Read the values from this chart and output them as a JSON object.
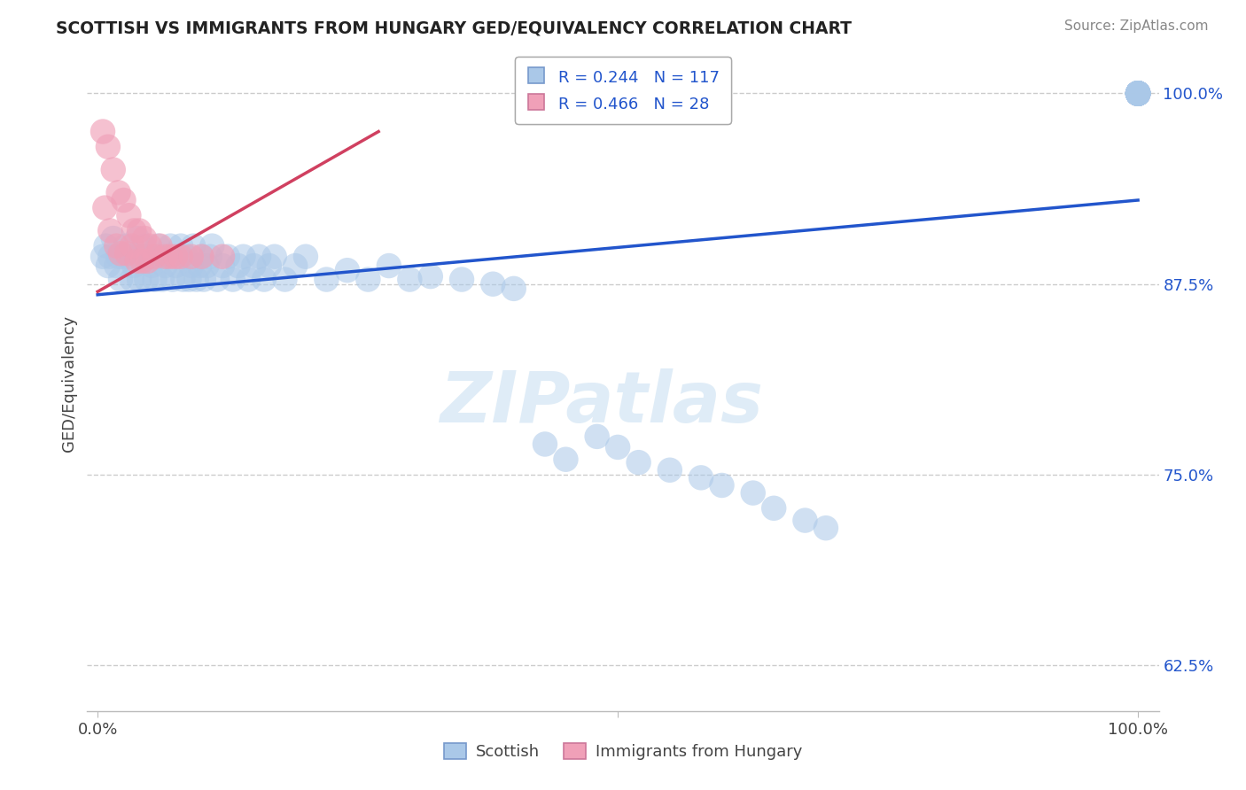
{
  "title": "SCOTTISH VS IMMIGRANTS FROM HUNGARY GED/EQUIVALENCY CORRELATION CHART",
  "source": "Source: ZipAtlas.com",
  "ylabel": "GED/Equivalency",
  "xlim": [
    -0.01,
    1.02
  ],
  "ylim": [
    0.595,
    1.025
  ],
  "yticks": [
    0.625,
    0.75,
    0.875,
    1.0
  ],
  "ytick_labels": [
    "62.5%",
    "75.0%",
    "87.5%",
    "100.0%"
  ],
  "xtick_positions": [
    0.0,
    0.5,
    1.0
  ],
  "xtick_labels": [
    "0.0%",
    "",
    "100.0%"
  ],
  "blue_r": 0.244,
  "blue_n": 117,
  "pink_r": 0.466,
  "pink_n": 28,
  "blue_color": "#aac8e8",
  "blue_line_color": "#2255cc",
  "pink_color": "#f0a0b8",
  "pink_line_color": "#d04060",
  "background_color": "#ffffff",
  "grid_color": "#cccccc",
  "legend_label_blue": "Scottish",
  "legend_label_pink": "Immigrants from Hungary",
  "watermark": "ZIPatlas",
  "blue_trend_x": [
    0.0,
    1.0
  ],
  "blue_trend_y": [
    0.868,
    0.93
  ],
  "pink_trend_x": [
    0.0,
    0.27
  ],
  "pink_trend_y": [
    0.87,
    0.975
  ],
  "blue_scatter_x": [
    0.005,
    0.008,
    0.01,
    0.012,
    0.015,
    0.018,
    0.02,
    0.022,
    0.025,
    0.027,
    0.03,
    0.033,
    0.035,
    0.038,
    0.04,
    0.042,
    0.045,
    0.047,
    0.05,
    0.052,
    0.055,
    0.058,
    0.06,
    0.062,
    0.065,
    0.068,
    0.07,
    0.072,
    0.075,
    0.078,
    0.08,
    0.082,
    0.085,
    0.088,
    0.09,
    0.092,
    0.095,
    0.098,
    0.1,
    0.102,
    0.105,
    0.108,
    0.11,
    0.115,
    0.12,
    0.125,
    0.13,
    0.135,
    0.14,
    0.145,
    0.15,
    0.155,
    0.16,
    0.165,
    0.17,
    0.18,
    0.19,
    0.2,
    0.22,
    0.24,
    0.26,
    0.28,
    0.3,
    0.32,
    0.35,
    0.38,
    0.4,
    0.43,
    0.45,
    0.48,
    0.5,
    0.52,
    0.55,
    0.58,
    0.6,
    0.63,
    0.65,
    0.68,
    0.7,
    1.0,
    1.0,
    1.0,
    1.0,
    1.0,
    1.0,
    1.0,
    1.0,
    1.0,
    1.0,
    1.0,
    1.0,
    1.0,
    1.0,
    1.0,
    1.0,
    1.0,
    1.0,
    1.0,
    1.0,
    1.0,
    1.0,
    1.0,
    1.0,
    1.0,
    1.0,
    1.0,
    1.0,
    1.0,
    1.0,
    1.0,
    1.0,
    1.0,
    1.0,
    1.0,
    1.0,
    1.0,
    1.0
  ],
  "blue_scatter_y": [
    0.893,
    0.9,
    0.887,
    0.893,
    0.905,
    0.887,
    0.893,
    0.878,
    0.893,
    0.9,
    0.893,
    0.878,
    0.887,
    0.905,
    0.878,
    0.893,
    0.9,
    0.878,
    0.893,
    0.887,
    0.878,
    0.9,
    0.893,
    0.878,
    0.887,
    0.893,
    0.9,
    0.878,
    0.887,
    0.893,
    0.9,
    0.878,
    0.893,
    0.878,
    0.887,
    0.9,
    0.878,
    0.887,
    0.893,
    0.878,
    0.887,
    0.893,
    0.9,
    0.878,
    0.887,
    0.893,
    0.878,
    0.887,
    0.893,
    0.878,
    0.887,
    0.893,
    0.878,
    0.887,
    0.893,
    0.878,
    0.887,
    0.893,
    0.878,
    0.884,
    0.878,
    0.887,
    0.878,
    0.88,
    0.878,
    0.875,
    0.872,
    0.77,
    0.76,
    0.775,
    0.768,
    0.758,
    0.753,
    0.748,
    0.743,
    0.738,
    0.728,
    0.72,
    0.715,
    1.0,
    1.0,
    1.0,
    1.0,
    1.0,
    1.0,
    1.0,
    1.0,
    1.0,
    1.0,
    1.0,
    1.0,
    1.0,
    1.0,
    1.0,
    1.0,
    1.0,
    1.0,
    1.0,
    1.0,
    1.0,
    1.0,
    1.0,
    1.0,
    1.0,
    1.0,
    1.0,
    1.0,
    1.0,
    1.0,
    1.0,
    1.0,
    1.0,
    1.0,
    1.0,
    1.0,
    1.0,
    1.0
  ],
  "pink_scatter_x": [
    0.005,
    0.007,
    0.01,
    0.012,
    0.015,
    0.018,
    0.02,
    0.022,
    0.025,
    0.028,
    0.03,
    0.033,
    0.035,
    0.038,
    0.04,
    0.043,
    0.045,
    0.048,
    0.05,
    0.055,
    0.06,
    0.065,
    0.07,
    0.075,
    0.08,
    0.09,
    0.1,
    0.12
  ],
  "pink_scatter_y": [
    0.975,
    0.925,
    0.965,
    0.91,
    0.95,
    0.9,
    0.935,
    0.895,
    0.93,
    0.895,
    0.92,
    0.9,
    0.91,
    0.89,
    0.91,
    0.89,
    0.905,
    0.89,
    0.9,
    0.893,
    0.9,
    0.893,
    0.893,
    0.893,
    0.893,
    0.893,
    0.893,
    0.893
  ]
}
